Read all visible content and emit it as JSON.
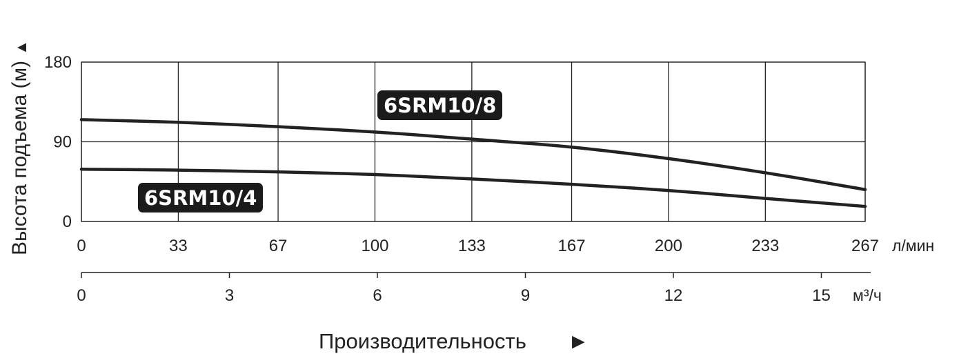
{
  "chart_data": {
    "type": "line",
    "ylabel": "Высота подъема (м)",
    "xlabel": "Производительность",
    "ylim": [
      0,
      180
    ],
    "y_ticks": [
      0,
      90,
      180
    ],
    "x_lpm": {
      "unit": "л/мин",
      "range": [
        0,
        267
      ],
      "ticks": [
        "0",
        "33",
        "67",
        "100",
        "133",
        "167",
        "200",
        "233",
        "267"
      ]
    },
    "x_m3h": {
      "unit": "м³/ч",
      "range": [
        0,
        16
      ],
      "ticks": [
        "0",
        "3",
        "6",
        "9",
        "12",
        "15"
      ]
    },
    "grid": true,
    "series": [
      {
        "name": "6SRM10/8",
        "x_lpm": [
          0,
          33,
          67,
          100,
          133,
          167,
          200,
          233,
          267
        ],
        "y": [
          115,
          112,
          107,
          101,
          93,
          84,
          71,
          55,
          36
        ]
      },
      {
        "name": "6SRM10/4",
        "x_lpm": [
          0,
          33,
          67,
          100,
          133,
          167,
          200,
          233,
          267
        ],
        "y": [
          59,
          58,
          56,
          53,
          48,
          42,
          35,
          26,
          17
        ]
      }
    ]
  }
}
